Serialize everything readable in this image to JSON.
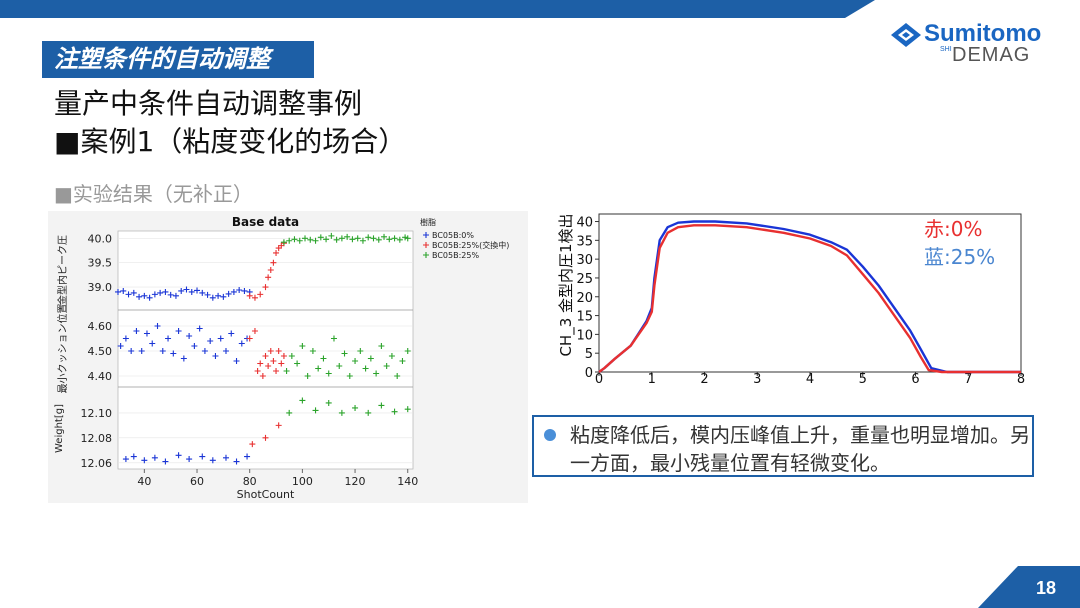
{
  "colors": {
    "accent": "#1d5fa6",
    "red_series": "#e83030",
    "blue_series": "#1a35d6",
    "green_series": "#2ba32b"
  },
  "header": {
    "logo": {
      "brand": "Sumitomo",
      "sub": "DEMAG",
      "shi": "SHI",
      "icon": "sumitomo-diamond-icon"
    }
  },
  "slide": {
    "section_tag": "注塑条件的自动调整",
    "title": "量产中条件自动调整事例",
    "case_title": "■案例1（粘度变化的场合）",
    "subtitle": "■实验结果（无补正）",
    "note": "粘度降低后，模内压峰值上升，重量也明显增加。另一方面，最小残量位置有轻微变化。",
    "page_number": "18"
  },
  "chart_data": [
    {
      "type": "scatter",
      "title": "Base data",
      "xlabel": "ShotCount",
      "x_ticks": [
        "40",
        "60",
        "80",
        "100",
        "120",
        "140"
      ],
      "xlim": [
        30,
        142
      ],
      "legend": {
        "title": "樹脂",
        "placement": "top-right",
        "entries": [
          "BC05B:0%",
          "BC05B:25%(交換中)",
          "BC05B:25%"
        ]
      },
      "panels": [
        {
          "ylabel": "ウ圧 / Weight/ 金型内ピーク圧",
          "ylabel_text": "金型内ピーク圧",
          "y_ticks": [
            "40.0",
            "39.5",
            "39.0"
          ],
          "ylim": [
            38.55,
            40.15
          ],
          "series": [
            {
              "name": "BC05B:0%",
              "x": [
                30,
                32,
                34,
                36,
                38,
                40,
                42,
                44,
                46,
                48,
                50,
                52,
                54,
                56,
                58,
                60,
                62,
                64,
                66,
                68,
                70,
                72,
                74,
                76,
                78,
                80
              ],
              "y": [
                38.9,
                38.92,
                38.85,
                38.88,
                38.8,
                38.82,
                38.78,
                38.85,
                38.88,
                38.9,
                38.84,
                38.82,
                38.92,
                38.95,
                38.9,
                38.93,
                38.88,
                38.84,
                38.78,
                38.82,
                38.8,
                38.86,
                38.9,
                38.94,
                38.92,
                38.9
              ]
            },
            {
              "name": "BC05B:25%(交換中)",
              "x": [
                80,
                82,
                84,
                86,
                87,
                88,
                89,
                90,
                91,
                92,
                93
              ],
              "y": [
                38.82,
                38.78,
                38.85,
                39.0,
                39.2,
                39.35,
                39.5,
                39.7,
                39.8,
                39.85,
                39.9
              ]
            },
            {
              "name": "BC05B:25%",
              "x": [
                93,
                95,
                97,
                99,
                101,
                103,
                105,
                107,
                109,
                111,
                113,
                115,
                117,
                119,
                121,
                123,
                125,
                127,
                129,
                131,
                133,
                135,
                137,
                139,
                140
              ],
              "y": [
                39.92,
                39.95,
                39.98,
                39.95,
                40.0,
                39.97,
                39.95,
                40.02,
                39.98,
                40.05,
                39.97,
                40.0,
                40.03,
                39.98,
                40.0,
                39.95,
                40.02,
                40.0,
                39.97,
                40.03,
                39.98,
                40.0,
                39.97,
                40.02,
                40.0
              ]
            }
          ]
        },
        {
          "ylabel_text": "最小クッション位置",
          "y_ticks": [
            "4.60",
            "4.50",
            "4.40"
          ],
          "ylim": [
            4.36,
            4.66
          ],
          "series": [
            {
              "name": "BC05B:0%",
              "x": [
                31,
                33,
                35,
                37,
                39,
                41,
                43,
                45,
                47,
                49,
                51,
                53,
                55,
                57,
                59,
                61,
                63,
                65,
                67,
                69,
                71,
                73,
                75,
                77,
                79
              ],
              "y": [
                4.52,
                4.55,
                4.5,
                4.58,
                4.5,
                4.57,
                4.53,
                4.6,
                4.5,
                4.55,
                4.49,
                4.58,
                4.47,
                4.56,
                4.52,
                4.59,
                4.5,
                4.54,
                4.48,
                4.55,
                4.5,
                4.57,
                4.46,
                4.53,
                4.55
              ]
            },
            {
              "name": "BC05B:25%(交換中)",
              "x": [
                80,
                82,
                83,
                84,
                85,
                86,
                87,
                88,
                89,
                90,
                91,
                92,
                93
              ],
              "y": [
                4.55,
                4.58,
                4.42,
                4.45,
                4.4,
                4.48,
                4.44,
                4.5,
                4.46,
                4.42,
                4.5,
                4.45,
                4.48
              ]
            },
            {
              "name": "BC05B:25%",
              "x": [
                94,
                96,
                98,
                100,
                102,
                104,
                106,
                108,
                110,
                112,
                114,
                116,
                118,
                120,
                122,
                124,
                126,
                128,
                130,
                132,
                134,
                136,
                138,
                140
              ],
              "y": [
                4.42,
                4.48,
                4.45,
                4.52,
                4.4,
                4.5,
                4.43,
                4.47,
                4.41,
                4.55,
                4.44,
                4.49,
                4.4,
                4.46,
                4.5,
                4.43,
                4.47,
                4.41,
                4.52,
                4.44,
                4.48,
                4.4,
                4.46,
                4.5
              ]
            }
          ]
        },
        {
          "ylabel_text": "Weight[g]",
          "y_ticks": [
            "12.10",
            "12.08",
            "12.06"
          ],
          "ylim": [
            12.055,
            12.12
          ],
          "series": [
            {
              "name": "BC05B:0%",
              "x": [
                33,
                36,
                40,
                44,
                48,
                53,
                57,
                62,
                66,
                71,
                75,
                79
              ],
              "y": [
                12.063,
                12.065,
                12.062,
                12.064,
                12.061,
                12.066,
                12.063,
                12.065,
                12.062,
                12.064,
                12.061,
                12.065
              ]
            },
            {
              "name": "BC05B:25%(交換中)",
              "x": [
                81,
                86,
                91
              ],
              "y": [
                12.075,
                12.08,
                12.09
              ]
            },
            {
              "name": "BC05B:25%",
              "x": [
                95,
                100,
                105,
                110,
                115,
                120,
                125,
                130,
                135,
                140
              ],
              "y": [
                12.1,
                12.11,
                12.102,
                12.108,
                12.1,
                12.104,
                12.1,
                12.106,
                12.101,
                12.103
              ]
            }
          ]
        }
      ]
    },
    {
      "type": "line",
      "ylabel": "CH_3 金型内圧1検出",
      "xlim": [
        0,
        8
      ],
      "ylim": [
        0,
        42
      ],
      "x_ticks": [
        "0",
        "1",
        "2",
        "3",
        "4",
        "5",
        "6",
        "7",
        "8"
      ],
      "y_ticks": [
        "0",
        "5",
        "10",
        "15",
        "20",
        "25",
        "30",
        "35",
        "40"
      ],
      "series": [
        {
          "name": "赤:0%",
          "x": [
            0,
            0.1,
            0.3,
            0.6,
            0.9,
            1.0,
            1.05,
            1.15,
            1.3,
            1.5,
            1.8,
            2.2,
            2.8,
            3.5,
            4.0,
            4.4,
            4.7,
            5.0,
            5.3,
            5.6,
            5.9,
            6.1,
            6.25,
            6.5,
            7,
            8
          ],
          "y": [
            0,
            1,
            3.5,
            7,
            13,
            16,
            23,
            33,
            37,
            38.5,
            39,
            39,
            38.5,
            37,
            35.5,
            33.5,
            31,
            26,
            21,
            15,
            9,
            4,
            0.5,
            0,
            0,
            0
          ]
        },
        {
          "name": "蓝:25%",
          "x": [
            0,
            0.1,
            0.3,
            0.6,
            0.9,
            1.0,
            1.05,
            1.15,
            1.3,
            1.5,
            1.8,
            2.2,
            2.8,
            3.5,
            4.0,
            4.4,
            4.7,
            5.0,
            5.3,
            5.6,
            5.9,
            6.1,
            6.3,
            6.6,
            7,
            8
          ],
          "y": [
            0,
            1,
            3.5,
            7,
            13.5,
            17,
            25,
            35,
            38.5,
            39.7,
            40,
            40,
            39.5,
            38,
            36.5,
            34.5,
            32.5,
            28,
            23,
            17,
            11,
            6,
            1,
            0,
            0,
            0
          ]
        }
      ],
      "legend": {
        "placement": "top-right",
        "red_label": "赤:0%",
        "blue_label": "蓝:25%"
      }
    }
  ]
}
